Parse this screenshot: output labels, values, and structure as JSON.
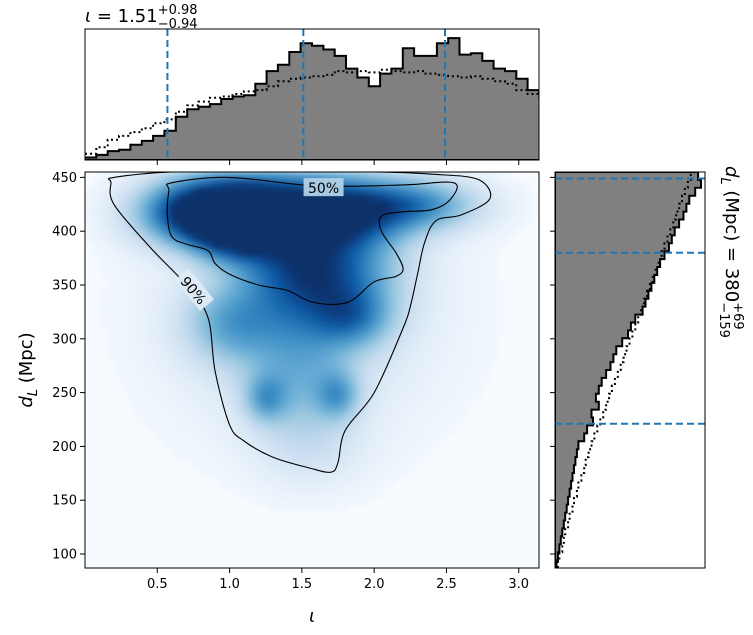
{
  "colors": {
    "hist_fill": "#808080",
    "interval_line": "#1f77b4",
    "density_map": "Blues"
  },
  "chart_data": [
    {
      "panel": "joint",
      "type": "heatmap",
      "xlabel_symbol": "ι",
      "ylabel_symbol": "d",
      "ylabel_sub": "L",
      "ylabel_rest": " (Mpc)",
      "xlim": [
        0.0,
        3.14
      ],
      "ylim": [
        87,
        455
      ],
      "xticks": [
        0.5,
        1.0,
        1.5,
        2.0,
        2.5,
        3.0
      ],
      "xtick_labels": [
        "0.5",
        "1.0",
        "1.5",
        "2.0",
        "2.5",
        "3.0"
      ],
      "yticks": [
        100,
        150,
        200,
        250,
        300,
        350,
        400,
        450
      ],
      "ytick_labels": [
        "100",
        "150",
        "200",
        "250",
        "300",
        "350",
        "400",
        "450"
      ],
      "density_peaks": [
        {
          "x": 0.78,
          "y": 418,
          "w": 0.28,
          "h": 20,
          "a": 0.95
        },
        {
          "x": 1.08,
          "y": 422,
          "w": 0.3,
          "h": 22,
          "a": 1.0
        },
        {
          "x": 1.05,
          "y": 400,
          "w": 0.2,
          "h": 18,
          "a": 0.85
        },
        {
          "x": 1.45,
          "y": 418,
          "w": 0.28,
          "h": 22,
          "a": 0.75
        },
        {
          "x": 1.85,
          "y": 420,
          "w": 0.3,
          "h": 22,
          "a": 0.75
        },
        {
          "x": 2.3,
          "y": 425,
          "w": 0.3,
          "h": 16,
          "a": 0.55
        },
        {
          "x": 1.75,
          "y": 360,
          "w": 0.28,
          "h": 35,
          "a": 0.65
        },
        {
          "x": 1.4,
          "y": 365,
          "w": 0.25,
          "h": 30,
          "a": 0.5
        },
        {
          "x": 1.85,
          "y": 320,
          "w": 0.18,
          "h": 18,
          "a": 0.4
        },
        {
          "x": 1.0,
          "y": 315,
          "w": 0.22,
          "h": 25,
          "a": 0.4
        },
        {
          "x": 1.45,
          "y": 300,
          "w": 0.3,
          "h": 35,
          "a": 0.3
        },
        {
          "x": 1.25,
          "y": 245,
          "w": 0.1,
          "h": 15,
          "a": 0.42
        },
        {
          "x": 1.75,
          "y": 248,
          "w": 0.1,
          "h": 15,
          "a": 0.42
        },
        {
          "x": 1.5,
          "y": 250,
          "w": 0.22,
          "h": 30,
          "a": 0.22
        },
        {
          "x": 1.55,
          "y": 200,
          "w": 0.25,
          "h": 25,
          "a": 0.12
        },
        {
          "x": 1.5,
          "y": 330,
          "w": 0.7,
          "h": 90,
          "a": 0.14
        }
      ],
      "contours": [
        {
          "label": "50%",
          "label_at": [
            1.65,
            440
          ],
          "points": [
            [
              0.6,
              445
            ],
            [
              1.0,
              450
            ],
            [
              1.6,
              442
            ],
            [
              2.2,
              443
            ],
            [
              2.55,
              445
            ],
            [
              2.53,
              430
            ],
            [
              2.4,
              420
            ],
            [
              2.2,
              418
            ],
            [
              2.05,
              414
            ],
            [
              2.05,
              400
            ],
            [
              2.15,
              380
            ],
            [
              2.2,
              365
            ],
            [
              2.15,
              358
            ],
            [
              2.0,
              353
            ],
            [
              1.85,
              336
            ],
            [
              1.72,
              332
            ],
            [
              1.55,
              335
            ],
            [
              1.4,
              345
            ],
            [
              1.2,
              350
            ],
            [
              1.0,
              360
            ],
            [
              0.9,
              370
            ],
            [
              0.85,
              382
            ],
            [
              0.7,
              388
            ],
            [
              0.6,
              395
            ],
            [
              0.57,
              415
            ],
            [
              0.58,
              438
            ]
          ]
        },
        {
          "label": "90%",
          "label_at": [
            0.75,
            345
          ],
          "points": [
            [
              0.2,
              450
            ],
            [
              0.6,
              455
            ],
            [
              1.2,
              455
            ],
            [
              2.0,
              455
            ],
            [
              2.4,
              453
            ],
            [
              2.72,
              448
            ],
            [
              2.8,
              430
            ],
            [
              2.6,
              415
            ],
            [
              2.43,
              410
            ],
            [
              2.35,
              390
            ],
            [
              2.3,
              360
            ],
            [
              2.25,
              330
            ],
            [
              2.2,
              310
            ],
            [
              2.0,
              250
            ],
            [
              1.8,
              215
            ],
            [
              1.75,
              185
            ],
            [
              1.7,
              176
            ],
            [
              1.55,
              180
            ],
            [
              1.3,
              190
            ],
            [
              1.1,
              205
            ],
            [
              1.0,
              220
            ],
            [
              0.9,
              270
            ],
            [
              0.85,
              320
            ],
            [
              0.7,
              350
            ],
            [
              0.45,
              385
            ],
            [
              0.2,
              425
            ],
            [
              0.18,
              445
            ]
          ]
        }
      ]
    },
    {
      "panel": "top_marginal",
      "type": "histogram",
      "title_symbol": "ι",
      "title_value": " = 1.51",
      "title_sup": "+0.98",
      "title_sub": "−0.94",
      "xlim": [
        0.0,
        3.14
      ],
      "bin_width": 0.0785,
      "x_start": 0.0,
      "values": [
        0.02,
        0.04,
        0.07,
        0.08,
        0.12,
        0.15,
        0.19,
        0.23,
        0.34,
        0.4,
        0.42,
        0.44,
        0.48,
        0.5,
        0.51,
        0.6,
        0.7,
        0.75,
        0.85,
        0.92,
        0.9,
        0.87,
        0.82,
        0.72,
        0.65,
        0.58,
        0.68,
        0.72,
        0.88,
        0.82,
        0.82,
        0.92,
        0.96,
        0.83,
        0.84,
        0.78,
        0.72,
        0.7,
        0.64,
        0.55,
        0.52,
        0.48,
        0.46,
        0.4,
        0.33,
        0.28,
        0.24,
        0.18,
        0.14,
        0.1
      ],
      "prior_values": [
        0.05,
        0.1,
        0.16,
        0.19,
        0.22,
        0.25,
        0.29,
        0.32,
        0.38,
        0.43,
        0.46,
        0.49,
        0.5,
        0.52,
        0.54,
        0.55,
        0.58,
        0.62,
        0.64,
        0.65,
        0.66,
        0.67,
        0.7,
        0.69,
        0.7,
        0.69,
        0.71,
        0.7,
        0.69,
        0.7,
        0.68,
        0.67,
        0.66,
        0.65,
        0.66,
        0.64,
        0.62,
        0.6,
        0.55,
        0.52,
        0.5,
        0.48,
        0.44,
        0.4,
        0.36,
        0.32,
        0.28,
        0.24,
        0.16,
        0.08
      ],
      "ymax": 1.0,
      "interval_lines": [
        0.57,
        1.51,
        2.49
      ]
    },
    {
      "panel": "right_marginal",
      "type": "histogram",
      "title_symbol": "d",
      "title_sub_L": "L",
      "title_value": " (Mpc) = 380",
      "title_sup": "+69",
      "title_sub": "−159",
      "ylim": [
        87,
        455
      ],
      "bin_edges_start": 87,
      "bin_width": 7.36,
      "values": [
        0.01,
        0.02,
        0.03,
        0.04,
        0.05,
        0.06,
        0.07,
        0.08,
        0.09,
        0.1,
        0.11,
        0.12,
        0.13,
        0.14,
        0.15,
        0.16,
        0.2,
        0.22,
        0.26,
        0.25,
        0.3,
        0.28,
        0.3,
        0.32,
        0.35,
        0.38,
        0.4,
        0.42,
        0.46,
        0.5,
        0.52,
        0.55,
        0.6,
        0.62,
        0.64,
        0.66,
        0.68,
        0.7,
        0.72,
        0.75,
        0.78,
        0.8,
        0.82,
        0.85,
        0.88,
        0.9,
        0.92,
        0.96,
        1.0,
        0.98
      ],
      "prior_values": [
        0.02,
        0.03,
        0.05,
        0.06,
        0.07,
        0.09,
        0.1,
        0.12,
        0.13,
        0.15,
        0.16,
        0.18,
        0.2,
        0.21,
        0.23,
        0.25,
        0.27,
        0.29,
        0.31,
        0.33,
        0.35,
        0.37,
        0.39,
        0.41,
        0.43,
        0.45,
        0.47,
        0.49,
        0.51,
        0.53,
        0.55,
        0.57,
        0.59,
        0.61,
        0.63,
        0.65,
        0.67,
        0.69,
        0.71,
        0.73,
        0.75,
        0.77,
        0.79,
        0.81,
        0.83,
        0.85,
        0.87,
        0.89,
        0.91,
        0.93
      ],
      "xmax": 1.0,
      "interval_lines": [
        221,
        380,
        449
      ]
    }
  ]
}
